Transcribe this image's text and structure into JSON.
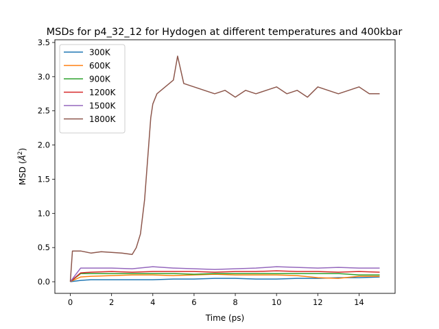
{
  "chart_data": {
    "type": "line",
    "title": "MSDs for p4_32_12 for Hydogen at different temperatures and 400kbar",
    "xlabel": "Time (ps)",
    "ylabel_prefix": "MSD (",
    "ylabel_unit_base": "Å",
    "ylabel_unit_exp": "2",
    "ylabel_suffix": ")",
    "xlim": [
      -0.75,
      15.75
    ],
    "ylim": [
      -0.17,
      3.54
    ],
    "xticks": [
      0,
      2,
      4,
      6,
      8,
      10,
      12,
      14
    ],
    "yticks": [
      0.0,
      0.5,
      1.0,
      1.5,
      2.0,
      2.5,
      3.0,
      3.5
    ],
    "xtick_labels": [
      "0",
      "2",
      "4",
      "6",
      "8",
      "10",
      "12",
      "14"
    ],
    "ytick_labels": [
      "0.0",
      "0.5",
      "1.0",
      "1.5",
      "2.0",
      "2.5",
      "3.0",
      "3.5"
    ],
    "grid": false,
    "legend_position": "top-left",
    "series": [
      {
        "name": "300K",
        "color": "#1f77b4",
        "x": [
          0,
          0.5,
          1,
          2,
          3,
          4,
          5,
          6,
          7,
          8,
          9,
          10,
          11,
          12,
          13,
          14,
          15
        ],
        "y": [
          0.0,
          0.02,
          0.03,
          0.03,
          0.03,
          0.03,
          0.04,
          0.04,
          0.05,
          0.05,
          0.04,
          0.04,
          0.05,
          0.05,
          0.06,
          0.06,
          0.07
        ]
      },
      {
        "name": "600K",
        "color": "#ff7f0e",
        "x": [
          0,
          0.5,
          1,
          2,
          3,
          4,
          5,
          6,
          7,
          8,
          9,
          10,
          11,
          12,
          13,
          14,
          15
        ],
        "y": [
          0.0,
          0.07,
          0.08,
          0.09,
          0.1,
          0.1,
          0.09,
          0.1,
          0.11,
          0.1,
          0.1,
          0.1,
          0.09,
          0.06,
          0.05,
          0.08,
          0.08
        ]
      },
      {
        "name": "900K",
        "color": "#2ca02c",
        "x": [
          0,
          0.5,
          1,
          2,
          3,
          4,
          5,
          6,
          7,
          8,
          9,
          10,
          11,
          12,
          13,
          14,
          15
        ],
        "y": [
          0.0,
          0.12,
          0.12,
          0.12,
          0.12,
          0.12,
          0.12,
          0.11,
          0.12,
          0.12,
          0.12,
          0.12,
          0.12,
          0.12,
          0.12,
          0.1,
          0.1
        ]
      },
      {
        "name": "1200K",
        "color": "#d62728",
        "x": [
          0,
          0.5,
          1,
          2,
          3,
          4,
          5,
          6,
          7,
          8,
          9,
          10,
          11,
          12,
          13,
          14,
          15
        ],
        "y": [
          0.0,
          0.13,
          0.14,
          0.15,
          0.14,
          0.15,
          0.15,
          0.15,
          0.14,
          0.15,
          0.15,
          0.16,
          0.15,
          0.15,
          0.14,
          0.15,
          0.14
        ]
      },
      {
        "name": "1500K",
        "color": "#9467bd",
        "x": [
          0,
          0.5,
          1,
          2,
          3,
          4,
          5,
          6,
          7,
          8,
          9,
          10,
          11,
          12,
          13,
          14,
          15
        ],
        "y": [
          0.0,
          0.2,
          0.2,
          0.2,
          0.19,
          0.22,
          0.2,
          0.19,
          0.18,
          0.19,
          0.2,
          0.22,
          0.21,
          0.2,
          0.21,
          0.2,
          0.2
        ]
      },
      {
        "name": "1800K",
        "color": "#8c564b",
        "x": [
          0,
          0.1,
          0.5,
          1,
          1.5,
          2,
          2.5,
          3,
          3.2,
          3.4,
          3.6,
          3.8,
          3.9,
          4.0,
          4.2,
          4.4,
          4.6,
          5,
          5.2,
          5.5,
          6,
          6.5,
          7,
          7.5,
          8,
          8.5,
          9,
          9.5,
          10,
          10.5,
          11,
          11.5,
          12,
          12.5,
          13,
          13.5,
          14,
          14.5,
          15
        ],
        "y": [
          0.0,
          0.45,
          0.45,
          0.42,
          0.44,
          0.43,
          0.42,
          0.4,
          0.5,
          0.7,
          1.2,
          2.0,
          2.4,
          2.6,
          2.75,
          2.8,
          2.85,
          2.95,
          3.3,
          2.9,
          2.85,
          2.8,
          2.75,
          2.8,
          2.7,
          2.8,
          2.75,
          2.8,
          2.85,
          2.75,
          2.8,
          2.7,
          2.85,
          2.8,
          2.75,
          2.8,
          2.85,
          2.75,
          2.75
        ]
      }
    ]
  }
}
